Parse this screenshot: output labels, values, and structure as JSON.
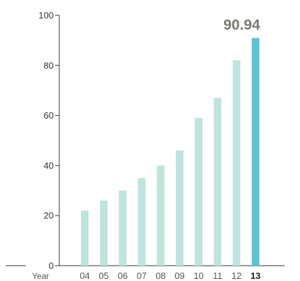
{
  "chart_data": {
    "type": "bar",
    "xlabel": "Year",
    "ylabel": "",
    "categories": [
      "04",
      "05",
      "06",
      "07",
      "08",
      "09",
      "10",
      "11",
      "12",
      "13"
    ],
    "values": [
      22,
      26,
      30,
      35,
      40,
      46,
      59,
      67,
      82,
      90.94
    ],
    "ylim": [
      0,
      100
    ],
    "yticks": [
      0,
      20,
      40,
      60,
      80,
      100
    ],
    "highlight_index": 9,
    "highlight_label": "90.94",
    "grid": false,
    "colors": {
      "bar": "#bfe4dd",
      "bar_highlight": "#5ec4d0",
      "axis": "#333333"
    }
  }
}
